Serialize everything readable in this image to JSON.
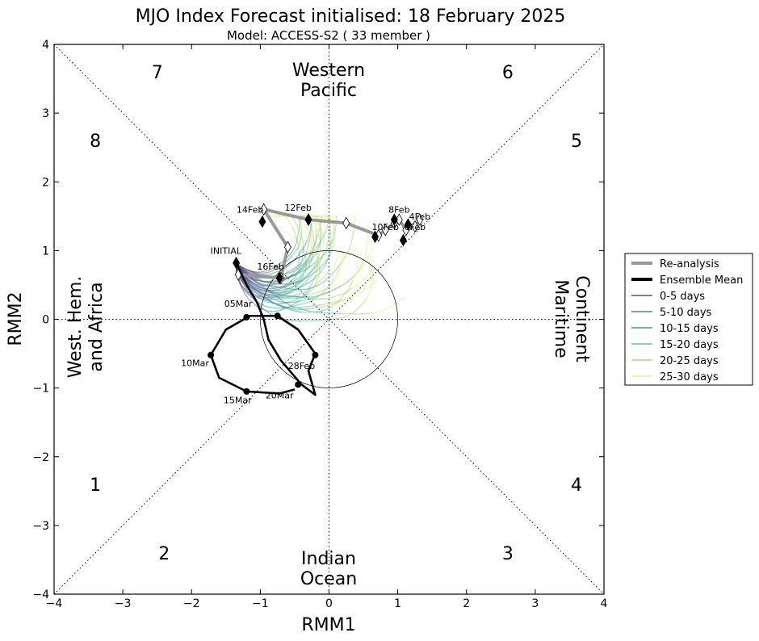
{
  "chart_data": {
    "type": "line",
    "title": "MJO Index Forecast initialised:  18  February 2025",
    "subtitle": "Model: ACCESS-S2 ( 33 member )",
    "xlabel": "RMM1",
    "ylabel": "RMM2",
    "xlim": [
      -4,
      4
    ],
    "ylim": [
      -4,
      4
    ],
    "xticks": [
      -4,
      -3,
      -2,
      -1,
      0,
      1,
      2,
      3,
      4
    ],
    "yticks": [
      -4,
      -3,
      -2,
      -1,
      0,
      1,
      2,
      3,
      4
    ],
    "phase_labels": [
      {
        "text": "7",
        "x": -2.5,
        "y": 3.6
      },
      {
        "text": "6",
        "x": 2.6,
        "y": 3.6
      },
      {
        "text": "8",
        "x": -3.4,
        "y": 2.6
      },
      {
        "text": "5",
        "x": 3.6,
        "y": 2.6
      },
      {
        "text": "1",
        "x": -3.4,
        "y": -2.4
      },
      {
        "text": "4",
        "x": 3.6,
        "y": -2.4
      },
      {
        "text": "2",
        "x": -2.4,
        "y": -3.4
      },
      {
        "text": "3",
        "x": 2.6,
        "y": -3.4
      }
    ],
    "region_labels": {
      "western_pacific": [
        "Western",
        "Pacific"
      ],
      "indian_ocean": [
        "Indian",
        "Ocean"
      ],
      "west_hem": [
        "West. Hem.",
        "and Africa"
      ],
      "maritime": [
        "Maritime",
        "Continent"
      ]
    },
    "reanalysis": {
      "name": "Re-analysis",
      "color": "#999999",
      "points": [
        [
          1.32,
          1.45
        ],
        [
          1.25,
          1.35
        ],
        [
          1.12,
          1.3
        ],
        [
          1.02,
          1.45
        ],
        [
          0.95,
          1.4
        ],
        [
          0.82,
          1.3
        ],
        [
          0.72,
          1.22
        ],
        [
          0.25,
          1.4
        ],
        [
          -0.3,
          1.45
        ],
        [
          -0.95,
          1.6
        ],
        [
          -0.6,
          1.05
        ],
        [
          -0.7,
          0.6
        ],
        [
          -1.32,
          0.65
        ]
      ],
      "date_labels": [
        {
          "text": "4Feb",
          "x": 1.32,
          "y": 1.45
        },
        {
          "text": "6Feb",
          "x": 1.25,
          "y": 1.3
        },
        {
          "text": "8Feb",
          "x": 1.02,
          "y": 1.55
        },
        {
          "text": "10Feb",
          "x": 0.82,
          "y": 1.3
        },
        {
          "text": "12Feb",
          "x": -0.45,
          "y": 1.58
        },
        {
          "text": "14Feb",
          "x": -1.15,
          "y": 1.55
        },
        {
          "text": "16Feb",
          "x": -0.85,
          "y": 0.72
        },
        {
          "text": "INITIAL",
          "x": -1.5,
          "y": 0.95
        }
      ],
      "filled_markers": [
        [
          1.15,
          1.38
        ],
        [
          1.08,
          1.15
        ],
        [
          0.95,
          1.45
        ],
        [
          0.67,
          1.2
        ],
        [
          -0.3,
          1.45
        ],
        [
          -0.97,
          1.42
        ],
        [
          -0.72,
          0.6
        ],
        [
          -1.35,
          0.82
        ]
      ]
    },
    "ensemble_mean": {
      "name": "Ensemble Mean",
      "color": "#000000",
      "points": [
        [
          -1.35,
          0.82
        ],
        [
          -1.2,
          0.5
        ],
        [
          -1.05,
          0.25
        ],
        [
          -0.95,
          0.0
        ],
        [
          -0.88,
          -0.3
        ],
        [
          -0.7,
          -0.6
        ],
        [
          -0.4,
          -0.95
        ],
        [
          -0.2,
          -1.1
        ],
        [
          -0.3,
          -0.75
        ],
        [
          -0.2,
          -0.5
        ],
        [
          -0.45,
          -0.15
        ],
        [
          -0.75,
          0.05
        ],
        [
          -1.15,
          0.05
        ],
        [
          -1.5,
          -0.15
        ],
        [
          -1.72,
          -0.52
        ],
        [
          -1.6,
          -0.85
        ],
        [
          -1.2,
          -1.05
        ],
        [
          -0.72,
          -1.08
        ],
        [
          -0.5,
          -1.02
        ]
      ],
      "date_labels": [
        {
          "text": "28Feb",
          "x": -0.4,
          "y": -0.72
        },
        {
          "text": "05Mar",
          "x": -1.32,
          "y": 0.18
        },
        {
          "text": "10Mar",
          "x": -1.95,
          "y": -0.68
        },
        {
          "text": "15Mar",
          "x": -1.33,
          "y": -1.22
        },
        {
          "text": "20Mar",
          "x": -0.72,
          "y": -1.15
        }
      ],
      "markers": [
        [
          -0.2,
          -0.52
        ],
        [
          -0.45,
          -0.95
        ],
        [
          -1.2,
          0.03
        ],
        [
          -1.72,
          -0.52
        ],
        [
          -1.2,
          -1.05
        ],
        [
          -0.75,
          0.05
        ]
      ]
    },
    "legend": {
      "placement": "right",
      "entries": [
        {
          "label": "Re-analysis",
          "color": "#999999",
          "style": "thick"
        },
        {
          "label": "Ensemble Mean",
          "color": "#000000",
          "style": "thick"
        },
        {
          "label": "0-5 days",
          "color": "#5a4a8c",
          "style": "thin"
        },
        {
          "label": "5-10 days",
          "color": "#5a7d9a",
          "style": "thin"
        },
        {
          "label": "10-15 days",
          "color": "#3f9b8e",
          "style": "thin"
        },
        {
          "label": "15-20 days",
          "color": "#5fc3a4",
          "style": "thin"
        },
        {
          "label": "20-25 days",
          "color": "#b5d777",
          "style": "thin"
        },
        {
          "label": "25-30 days",
          "color": "#f2ec7c",
          "style": "thin"
        }
      ]
    },
    "unit_circle_radius": 1
  }
}
